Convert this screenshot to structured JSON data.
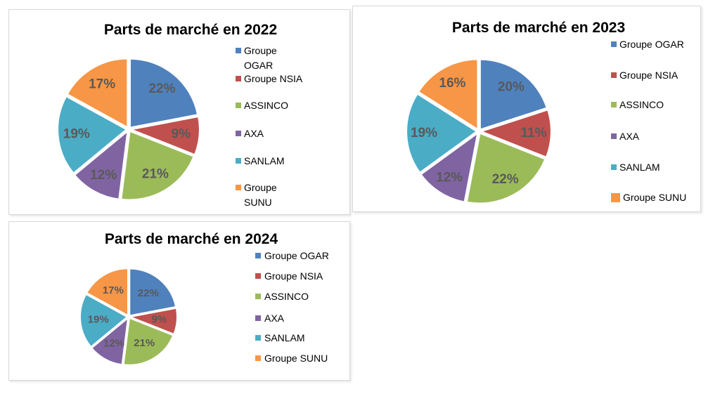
{
  "styles": {
    "data_label_color": "#595959",
    "title_color": "#000000",
    "panel_border": "#d7d7d7",
    "slice_gap_color": "#ffffff"
  },
  "palette": {
    "groupe_ogar": "#4F81BD",
    "groupe_nsia": "#C0504D",
    "assinco": "#9BBB59",
    "axa": "#8064A2",
    "sanlam": "#4BACC6",
    "groupe_sunu": "#F79646"
  },
  "chart_data": [
    {
      "type": "pie",
      "title": "Parts de marché en 2022",
      "categories": [
        "Groupe OGAR",
        "Groupe NSIA",
        "ASSINCO",
        "AXA",
        "SANLAM",
        "Groupe SUNU"
      ],
      "values": [
        22,
        9,
        21,
        12,
        19,
        17
      ],
      "data_labels": [
        "22%",
        "9%",
        "21%",
        "12%",
        "19%",
        "17%"
      ],
      "legend_labels": [
        "Groupe\nOGAR",
        "Groupe NSIA",
        "ASSINCO",
        "AXA",
        "SANLAM",
        "Groupe\nSUNU"
      ],
      "colors": [
        "#4F81BD",
        "#C0504D",
        "#9BBB59",
        "#8064A2",
        "#4BACC6",
        "#F79646"
      ],
      "legend_position": "right",
      "start_angle_deg": 0,
      "direction": "clockwise"
    },
    {
      "type": "pie",
      "title": "Parts de marché en 2023",
      "categories": [
        "Groupe OGAR",
        "Groupe NSIA",
        "ASSINCO",
        "AXA",
        "SANLAM",
        "Groupe SUNU"
      ],
      "values": [
        20,
        11,
        22,
        12,
        19,
        16
      ],
      "data_labels": [
        "20%",
        "11%",
        "22%",
        "12%",
        "19%",
        "16%"
      ],
      "legend_labels": [
        "Groupe OGAR",
        "Groupe NSIA",
        "ASSINCO",
        "AXA",
        "SANLAM",
        "Groupe SUNU"
      ],
      "colors": [
        "#4F81BD",
        "#C0504D",
        "#9BBB59",
        "#8064A2",
        "#4BACC6",
        "#F79646"
      ],
      "legend_position": "right",
      "start_angle_deg": 0,
      "direction": "clockwise"
    },
    {
      "type": "pie",
      "title": "Parts de marché en 2024",
      "categories": [
        "Groupe OGAR",
        "Groupe NSIA",
        "ASSINCO",
        "AXA",
        "SANLAM",
        "Groupe SUNU"
      ],
      "values": [
        22,
        9,
        21,
        12,
        19,
        17
      ],
      "data_labels": [
        "22%",
        "9%",
        "21%",
        "12%",
        "19%",
        "17%"
      ],
      "legend_labels": [
        "Groupe OGAR",
        "Groupe NSIA",
        "ASSINCO",
        "AXA",
        "SANLAM",
        "Groupe SUNU"
      ],
      "colors": [
        "#4F81BD",
        "#C0504D",
        "#9BBB59",
        "#8064A2",
        "#4BACC6",
        "#F79646"
      ],
      "legend_position": "right",
      "start_angle_deg": 0,
      "direction": "clockwise"
    }
  ]
}
